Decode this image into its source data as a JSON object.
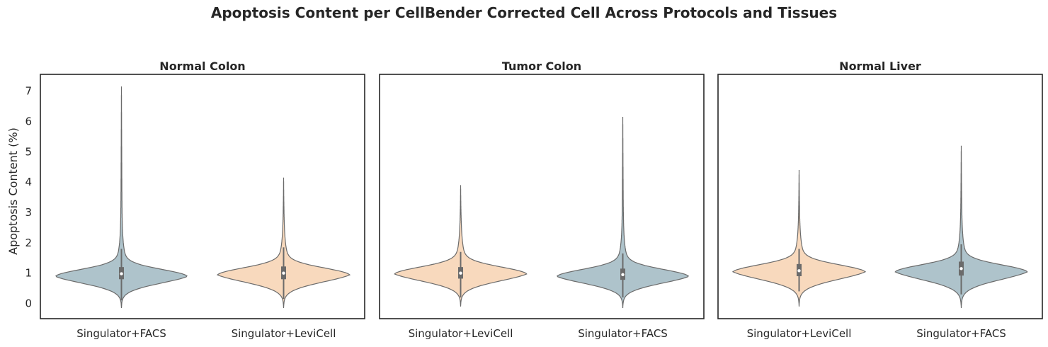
{
  "chart_data": {
    "type": "violin",
    "title": "Apoptosis Content per CellBender Corrected Cell Across Protocols and Tissues",
    "ylabel": "Apoptosis Content (%)",
    "ylim": [
      -0.5,
      7.55
    ],
    "yticks": [
      0,
      1,
      2,
      3,
      4,
      5,
      6,
      7
    ],
    "colors": {
      "Singulator+FACS": "#aec3cb",
      "Singulator+LeviCell": "#f8d9bd"
    },
    "panels": [
      {
        "title": "Normal Colon",
        "categories": [
          "Singulator+FACS",
          "Singulator+LeviCell"
        ],
        "violins": [
          {
            "category": "Singulator+FACS",
            "min": -0.15,
            "max": 7.15,
            "q1": 0.8,
            "median": 0.98,
            "q3": 1.2,
            "whisker_low": 0.1,
            "whisker_high": 1.8,
            "mode": 0.9,
            "mode_halfwidth": 0.9
          },
          {
            "category": "Singulator+LeviCell",
            "min": -0.15,
            "max": 4.15,
            "q1": 0.8,
            "median": 1.0,
            "q3": 1.22,
            "whisker_low": 0.15,
            "whisker_high": 1.85,
            "mode": 0.95,
            "mode_halfwidth": 0.9
          }
        ]
      },
      {
        "title": "Tumor Colon",
        "categories": [
          "Singulator+LeviCell",
          "Singulator+FACS"
        ],
        "violins": [
          {
            "category": "Singulator+LeviCell",
            "min": -0.1,
            "max": 3.9,
            "q1": 0.82,
            "median": 1.0,
            "q3": 1.2,
            "whisker_low": 0.2,
            "whisker_high": 1.7,
            "mode": 0.98,
            "mode_halfwidth": 0.9
          },
          {
            "category": "Singulator+FACS",
            "min": -0.15,
            "max": 6.15,
            "q1": 0.78,
            "median": 0.95,
            "q3": 1.15,
            "whisker_low": 0.2,
            "whisker_high": 1.65,
            "mode": 0.9,
            "mode_halfwidth": 0.9
          }
        ]
      },
      {
        "title": "Normal Liver",
        "categories": [
          "Singulator+LeviCell",
          "Singulator+FACS"
        ],
        "violins": [
          {
            "category": "Singulator+LeviCell",
            "min": -0.1,
            "max": 4.4,
            "q1": 0.9,
            "median": 1.08,
            "q3": 1.3,
            "whisker_low": 0.4,
            "whisker_high": 1.8,
            "mode": 1.05,
            "mode_halfwidth": 0.9
          },
          {
            "category": "Singulator+FACS",
            "min": -0.15,
            "max": 5.2,
            "q1": 0.92,
            "median": 1.15,
            "q3": 1.38,
            "whisker_low": 0.3,
            "whisker_high": 1.95,
            "mode": 1.05,
            "mode_halfwidth": 0.9
          }
        ]
      }
    ]
  }
}
